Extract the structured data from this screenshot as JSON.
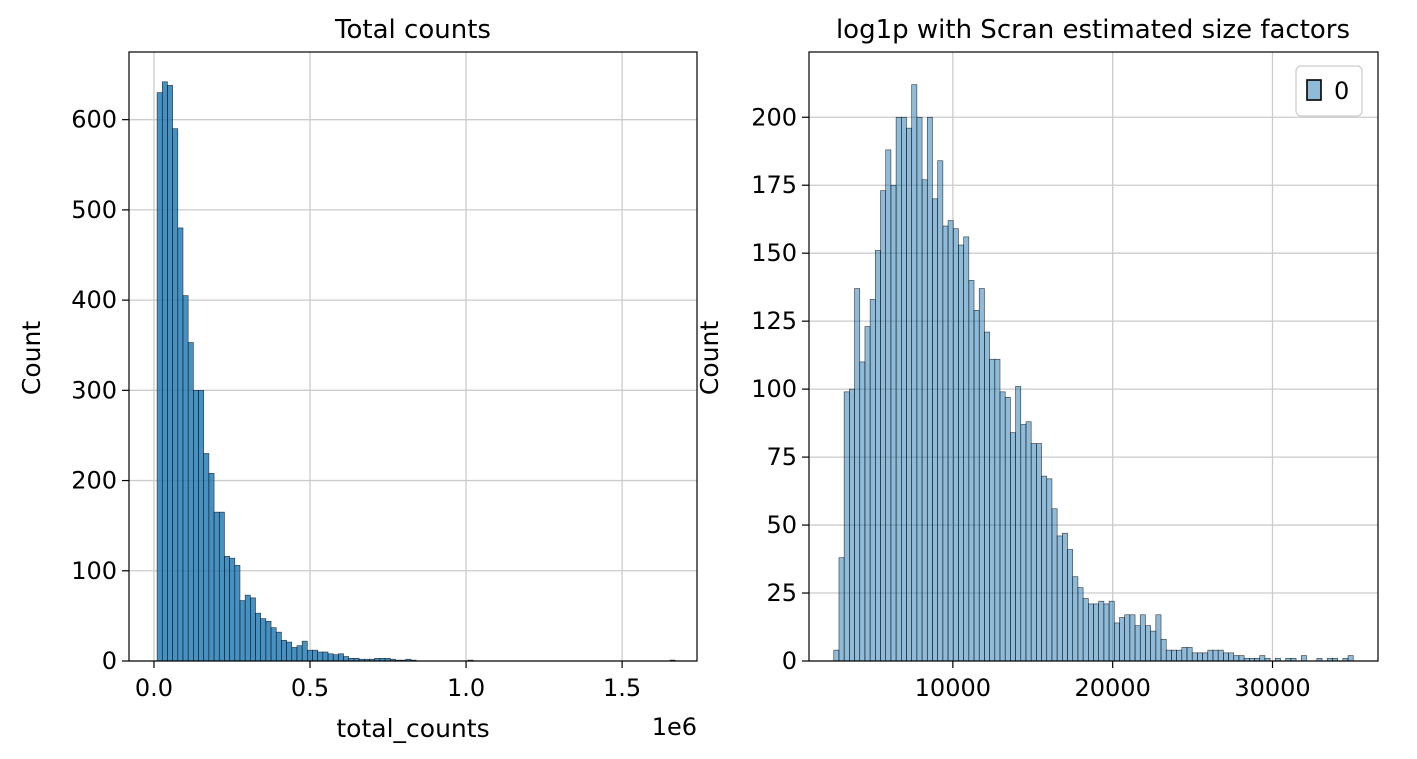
{
  "chart_data": [
    {
      "type": "bar",
      "title": "Total counts",
      "xlabel": "total_counts",
      "ylabel": "Count",
      "x_offset_label": "1e6",
      "xlim": [
        -0.08,
        1.74
      ],
      "ylim": [
        0,
        675
      ],
      "x_ticks": [
        0.0,
        0.5,
        1.0,
        1.5
      ],
      "x_tick_labels": [
        "0.0",
        "0.5",
        "1.0",
        "1.5"
      ],
      "y_ticks": [
        0,
        100,
        200,
        300,
        400,
        500,
        600
      ],
      "y_tick_labels": [
        "0",
        "100",
        "200",
        "300",
        "400",
        "500",
        "600"
      ],
      "grid": true,
      "bar_color": "#1f77b4",
      "bar_opacity": 0.82,
      "bin_start": 0.01,
      "bin_width": 0.0166,
      "values": [
        630,
        642,
        638,
        590,
        480,
        405,
        353,
        300,
        300,
        230,
        208,
        165,
        165,
        116,
        114,
        106,
        67,
        73,
        70,
        53,
        47,
        44,
        37,
        32,
        23,
        21,
        15,
        17,
        22,
        12,
        12,
        10,
        10,
        8,
        7,
        8,
        5,
        3,
        3,
        2,
        2,
        2,
        3,
        3,
        3,
        2,
        1,
        1,
        2,
        1,
        0,
        0,
        0,
        0,
        0,
        0,
        0,
        0,
        0,
        0,
        1,
        0,
        0,
        0,
        0,
        0,
        0,
        0,
        0,
        0,
        0,
        0,
        0,
        0,
        0,
        0,
        0,
        0,
        0,
        0,
        0,
        0,
        0,
        0,
        0,
        0,
        0,
        0,
        0,
        0,
        0,
        0,
        0,
        0,
        0,
        0,
        0,
        0,
        0,
        1
      ]
    },
    {
      "type": "bar",
      "title": "log1p with Scran estimated size factors",
      "xlabel": "",
      "ylabel": "Count",
      "xlim": [
        1000,
        36600
      ],
      "ylim": [
        0,
        224
      ],
      "x_ticks": [
        10000,
        20000,
        30000
      ],
      "x_tick_labels": [
        "10000",
        "20000",
        "30000"
      ],
      "y_ticks": [
        0,
        25,
        50,
        75,
        100,
        125,
        150,
        175,
        200
      ],
      "y_tick_labels": [
        "0",
        "25",
        "50",
        "75",
        "100",
        "125",
        "150",
        "175",
        "200"
      ],
      "grid": true,
      "bar_color": "#1f77b4",
      "bar_opacity": 0.5,
      "legend": {
        "title": "",
        "entries": [
          "0"
        ],
        "placement": "upper right"
      },
      "bin_start": 2550,
      "bin_width": 325,
      "values": [
        4,
        38,
        99,
        100,
        137,
        110,
        123,
        133,
        151,
        173,
        188,
        175,
        200,
        200,
        196,
        212,
        200,
        177,
        200,
        170,
        184,
        160,
        162,
        159,
        153,
        156,
        140,
        129,
        137,
        121,
        111,
        111,
        99,
        97,
        84,
        101,
        87,
        88,
        80,
        80,
        68,
        67,
        56,
        46,
        47,
        41,
        31,
        27,
        23,
        21,
        21,
        22,
        21,
        22,
        14,
        16,
        17,
        17,
        13,
        17,
        13,
        11,
        17,
        8,
        4,
        4,
        4,
        5,
        5,
        3,
        3,
        3,
        4,
        4,
        4,
        3,
        3,
        2,
        2,
        1,
        1,
        1,
        2,
        1,
        0,
        1,
        0,
        1,
        1,
        0,
        2,
        0,
        0,
        1,
        0,
        1,
        1,
        0,
        1,
        2
      ]
    }
  ]
}
